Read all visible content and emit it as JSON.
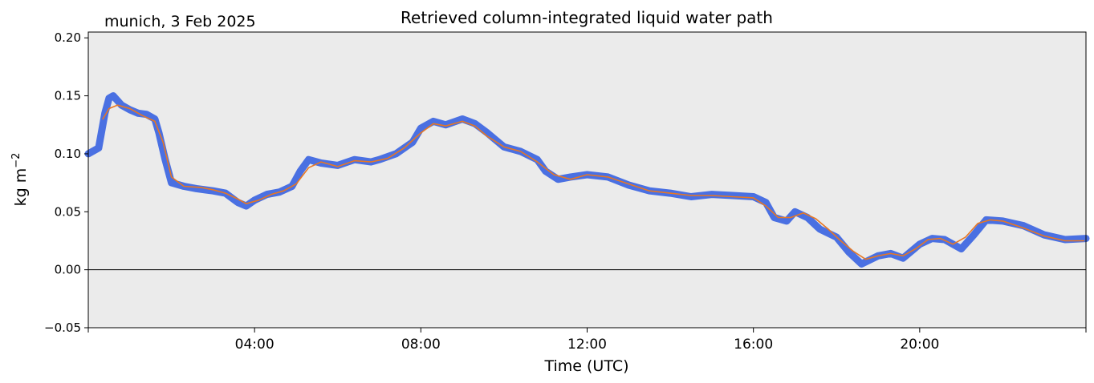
{
  "place_label": "munich, 3 Feb 2025",
  "chart_data": {
    "type": "line",
    "title": "Retrieved column-integrated liquid water path",
    "xlabel": "Time (UTC)",
    "ylabel": "kg m",
    "ylabel_exponent": "−2",
    "xlim_hours": [
      0,
      24
    ],
    "ylim": [
      -0.05,
      0.205
    ],
    "x_ticks": [
      {
        "hour": 4,
        "label": "04:00"
      },
      {
        "hour": 8,
        "label": "08:00"
      },
      {
        "hour": 12,
        "label": "12:00"
      },
      {
        "hour": 16,
        "label": "16:00"
      },
      {
        "hour": 20,
        "label": "20:00"
      }
    ],
    "y_ticks": [
      {
        "value": -0.05,
        "label": "−0.05"
      },
      {
        "value": 0.0,
        "label": "0.00"
      },
      {
        "value": 0.05,
        "label": "0.05"
      },
      {
        "value": 0.1,
        "label": "0.10"
      },
      {
        "value": 0.15,
        "label": "0.15"
      },
      {
        "value": 0.2,
        "label": "0.20"
      }
    ],
    "zero_line": true,
    "grid": false,
    "legend": "none",
    "series": [
      {
        "role": "retrieved",
        "color": "#4169e1",
        "x": [
          0.0,
          0.25,
          0.4,
          0.5,
          0.6,
          0.8,
          1.0,
          1.2,
          1.4,
          1.6,
          1.7,
          1.85,
          2.0,
          2.3,
          2.6,
          3.0,
          3.3,
          3.6,
          3.8,
          4.0,
          4.3,
          4.6,
          4.9,
          5.1,
          5.3,
          5.6,
          6.0,
          6.4,
          6.8,
          7.0,
          7.4,
          7.8,
          8.0,
          8.3,
          8.6,
          9.0,
          9.3,
          9.6,
          10.0,
          10.4,
          10.8,
          11.0,
          11.3,
          11.6,
          12.0,
          12.5,
          13.0,
          13.5,
          14.0,
          14.5,
          15.0,
          15.5,
          16.0,
          16.3,
          16.5,
          16.8,
          17.0,
          17.3,
          17.6,
          18.0,
          18.3,
          18.6,
          19.0,
          19.3,
          19.6,
          20.0,
          20.3,
          20.6,
          21.0,
          21.3,
          21.6,
          22.0,
          22.5,
          23.0,
          23.5,
          24.0
        ],
        "values": [
          0.1,
          0.105,
          0.135,
          0.148,
          0.15,
          0.142,
          0.138,
          0.135,
          0.134,
          0.13,
          0.118,
          0.095,
          0.075,
          0.072,
          0.07,
          0.068,
          0.066,
          0.058,
          0.055,
          0.06,
          0.065,
          0.067,
          0.072,
          0.085,
          0.095,
          0.092,
          0.09,
          0.095,
          0.093,
          0.095,
          0.1,
          0.11,
          0.122,
          0.128,
          0.125,
          0.13,
          0.126,
          0.118,
          0.106,
          0.102,
          0.095,
          0.085,
          0.078,
          0.08,
          0.082,
          0.08,
          0.073,
          0.068,
          0.066,
          0.063,
          0.065,
          0.064,
          0.063,
          0.058,
          0.045,
          0.042,
          0.05,
          0.045,
          0.035,
          0.028,
          0.015,
          0.005,
          0.012,
          0.014,
          0.01,
          0.022,
          0.027,
          0.026,
          0.018,
          0.03,
          0.043,
          0.042,
          0.038,
          0.03,
          0.026,
          0.027
        ]
      },
      {
        "role": "smoothed",
        "color": "#e87722",
        "x": [
          0.35,
          0.5,
          0.7,
          1.0,
          1.3,
          1.6,
          1.8,
          2.0,
          2.3,
          2.7,
          3.0,
          3.3,
          3.6,
          3.8,
          4.1,
          4.4,
          4.7,
          5.0,
          5.3,
          5.6,
          6.0,
          6.4,
          6.8,
          7.2,
          7.6,
          8.0,
          8.3,
          8.6,
          9.0,
          9.3,
          9.6,
          10.0,
          10.4,
          10.8,
          11.2,
          11.6,
          12.0,
          12.5,
          13.0,
          13.5,
          14.0,
          14.5,
          15.0,
          15.5,
          16.0,
          16.3,
          16.6,
          16.9,
          17.2,
          17.5,
          17.8,
          18.1,
          18.4,
          18.7,
          19.0,
          19.3,
          19.6,
          19.9,
          20.2,
          20.5,
          20.8,
          21.1,
          21.4,
          21.7,
          22.0,
          22.5,
          23.0,
          23.5,
          23.95
        ],
        "values": [
          0.13,
          0.139,
          0.142,
          0.139,
          0.133,
          0.128,
          0.11,
          0.08,
          0.072,
          0.071,
          0.069,
          0.066,
          0.061,
          0.057,
          0.06,
          0.065,
          0.068,
          0.074,
          0.088,
          0.093,
          0.089,
          0.094,
          0.093,
          0.096,
          0.105,
          0.118,
          0.126,
          0.124,
          0.128,
          0.124,
          0.115,
          0.106,
          0.102,
          0.093,
          0.082,
          0.078,
          0.082,
          0.08,
          0.074,
          0.068,
          0.066,
          0.064,
          0.064,
          0.063,
          0.062,
          0.055,
          0.045,
          0.045,
          0.049,
          0.044,
          0.035,
          0.025,
          0.016,
          0.009,
          0.012,
          0.014,
          0.012,
          0.018,
          0.026,
          0.027,
          0.022,
          0.028,
          0.04,
          0.043,
          0.042,
          0.036,
          0.029,
          0.025,
          0.025
        ]
      }
    ]
  }
}
